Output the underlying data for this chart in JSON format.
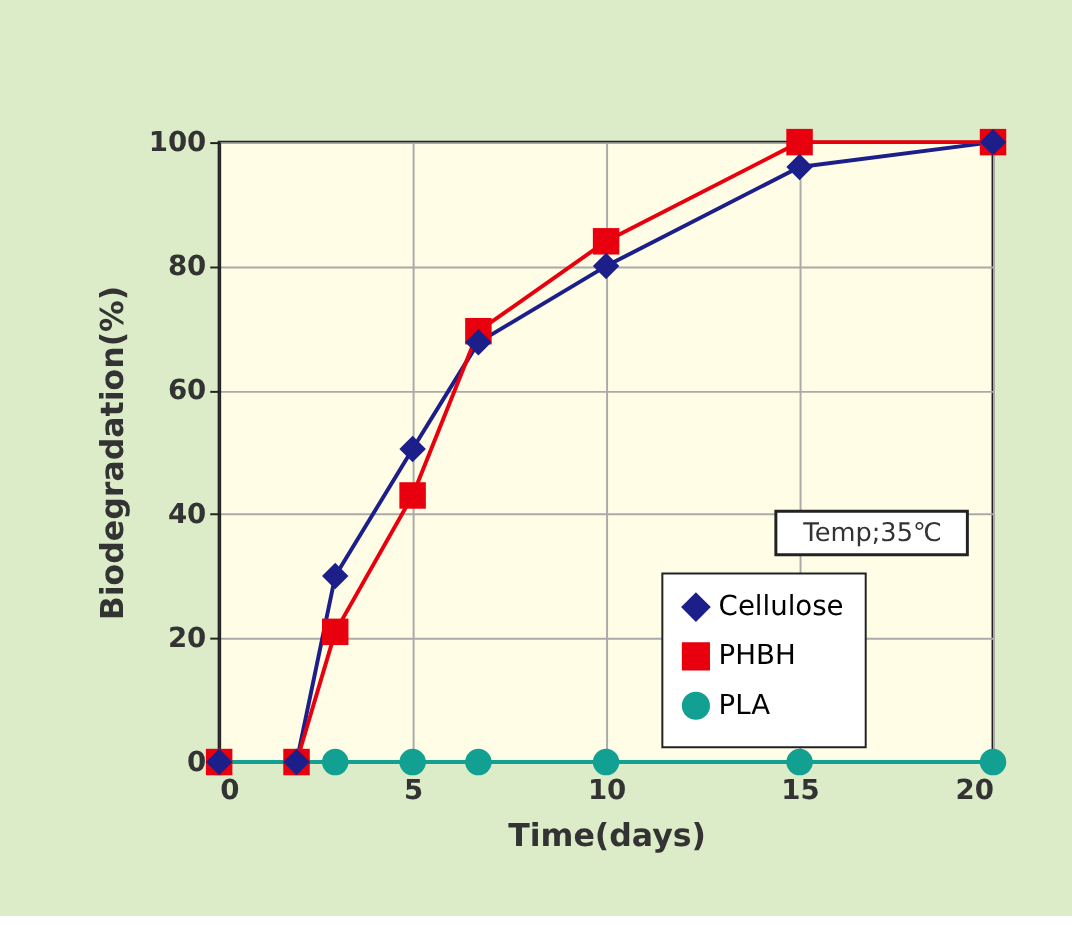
{
  "chart_data": {
    "type": "line",
    "xlabel": "Time(days)",
    "ylabel": "Biodegradation(%)",
    "xlim": [
      0,
      20
    ],
    "xticks": [
      0,
      5,
      10,
      15,
      20
    ],
    "ylim": [
      0,
      100
    ],
    "yticks": [
      0,
      20,
      40,
      60,
      80,
      100
    ],
    "grid": true,
    "legend": "bottom right",
    "line_style": "solid",
    "annotations": [
      "Temp;35℃"
    ],
    "series": [
      {
        "name": "Cellulose",
        "color": "#1c1f8a",
        "marker": "diamond",
        "x": [
          0,
          2,
          3,
          5,
          6.7,
          10,
          15,
          20
        ],
        "values": [
          0,
          0,
          30,
          50.5,
          67.7,
          80,
          96,
          100
        ]
      },
      {
        "name": "PHBH",
        "color": "#e8000f",
        "marker": "square",
        "x": [
          0,
          2,
          3,
          5,
          6.7,
          10,
          15,
          20
        ],
        "values": [
          0,
          0,
          21,
          43,
          69.5,
          84,
          100,
          100
        ]
      },
      {
        "name": "PLA",
        "color": "#12a092",
        "marker": "circle",
        "x": [
          0,
          2,
          3,
          5,
          6.7,
          10,
          15,
          20
        ],
        "values": [
          0,
          0,
          0,
          0,
          0,
          0,
          0,
          0
        ]
      }
    ]
  }
}
